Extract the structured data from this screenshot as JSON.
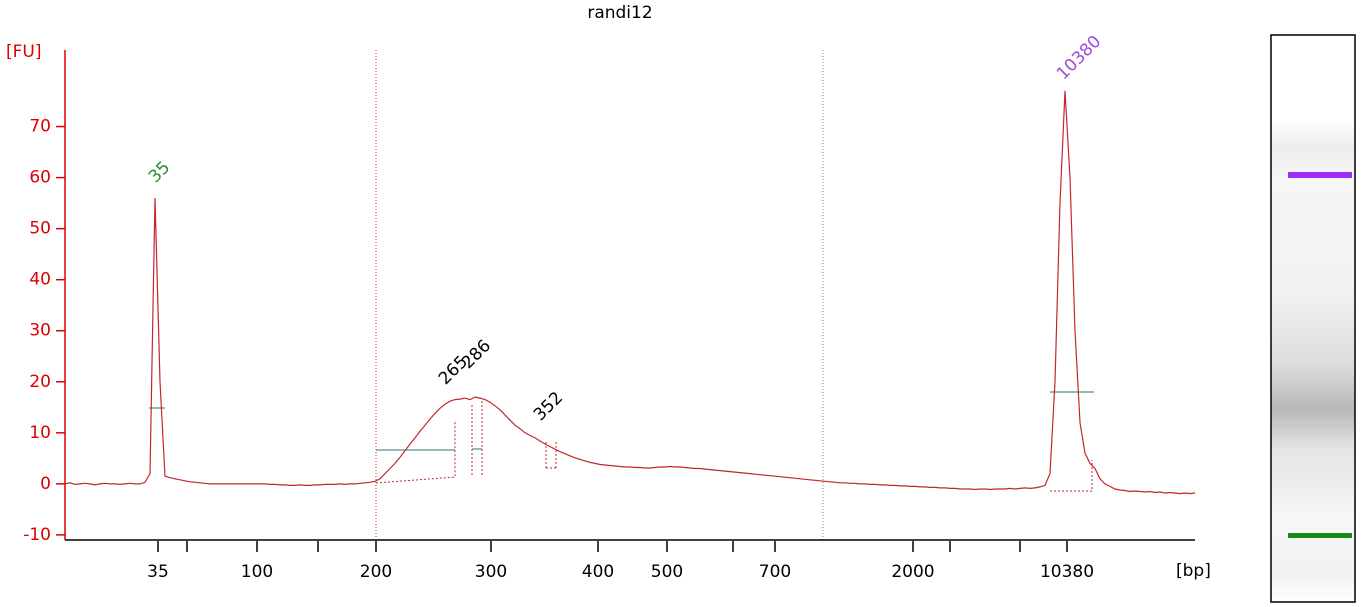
{
  "chart_data": {
    "type": "line",
    "title": "randi12",
    "y_label": "[FU]",
    "x_label": "[bp]",
    "ylim": [
      -11,
      85
    ],
    "yticks": [
      -10,
      0,
      10,
      20,
      30,
      40,
      50,
      60,
      70
    ],
    "x_tick_labels": [
      "35",
      null,
      "100",
      null,
      "200",
      "300",
      "400",
      "500",
      null,
      "700",
      "2000",
      null,
      null,
      "10380"
    ],
    "series": [
      {
        "color": "#c0282a",
        "values": [
          0,
          0.2,
          -0.1,
          0,
          0.1,
          0,
          -0.2,
          0,
          0.1,
          0,
          0,
          -0.1,
          0,
          0.1,
          0,
          0,
          0.3,
          2,
          56,
          20,
          1.5,
          1.2,
          1,
          0.8,
          0.6,
          0.4,
          0.3,
          0.2,
          0.1,
          0,
          0,
          0,
          0,
          0,
          0,
          0,
          0,
          0,
          0,
          0,
          0,
          -0.1,
          -0.1,
          -0.2,
          -0.2,
          -0.3,
          -0.3,
          -0.2,
          -0.3,
          -0.3,
          -0.2,
          -0.2,
          -0.1,
          -0.1,
          -0.1,
          0,
          -0.1,
          0,
          0,
          0.1,
          0.2,
          0.3,
          0.5,
          1,
          2,
          3,
          4,
          5.2,
          6.5,
          7.8,
          9,
          10.3,
          11.5,
          12.7,
          13.8,
          14.8,
          15.6,
          16.2,
          16.5,
          16.6,
          16.8,
          16.5,
          17,
          16.8,
          16.5,
          16,
          15.3,
          14.5,
          13.5,
          12.5,
          11.5,
          10.8,
          10,
          9.5,
          9,
          8.4,
          7.8,
          7.3,
          6.8,
          6.3,
          5.9,
          5.5,
          5.1,
          4.8,
          4.5,
          4.2,
          4,
          3.8,
          3.7,
          3.6,
          3.5,
          3.4,
          3.3,
          3.3,
          3.2,
          3.2,
          3.1,
          3.1,
          3.2,
          3.3,
          3.3,
          3.4,
          3.3,
          3.3,
          3.2,
          3.1,
          3,
          3,
          2.9,
          2.8,
          2.7,
          2.6,
          2.5,
          2.4,
          2.3,
          2.2,
          2.1,
          2,
          1.9,
          1.8,
          1.7,
          1.6,
          1.5,
          1.4,
          1.3,
          1.2,
          1.1,
          1,
          0.9,
          0.8,
          0.7,
          0.6,
          0.5,
          0.4,
          0.3,
          0.2,
          0.2,
          0.1,
          0.1,
          0,
          0,
          -0.1,
          -0.1,
          -0.2,
          -0.2,
          -0.3,
          -0.3,
          -0.4,
          -0.4,
          -0.5,
          -0.5,
          -0.6,
          -0.6,
          -0.7,
          -0.7,
          -0.8,
          -0.8,
          -0.9,
          -0.9,
          -1,
          -1,
          -1,
          -1.1,
          -1,
          -1,
          -1.1,
          -1,
          -1,
          -1,
          -0.9,
          -1,
          -0.9,
          -0.8,
          -0.9,
          -0.8,
          -0.6,
          -0.3,
          2,
          20,
          55,
          77,
          60,
          30,
          12,
          6,
          4,
          3,
          1,
          0,
          -0.5,
          -1,
          -1.2,
          -1.3,
          -1.5,
          -1.4,
          -1.5,
          -1.6,
          -1.5,
          -1.7,
          -1.6,
          -1.8,
          -1.7,
          -1.8,
          -1.9,
          -1.8,
          -1.9,
          -1.8
        ]
      }
    ],
    "peaks": [
      {
        "label": "35",
        "color": "#2a8a2a"
      },
      {
        "label": "265",
        "color": "#000000"
      },
      {
        "label": "286",
        "color": "#000000"
      },
      {
        "label": "352",
        "color": "#000000"
      },
      {
        "label": "10380",
        "color": "#9b4de0"
      }
    ]
  }
}
